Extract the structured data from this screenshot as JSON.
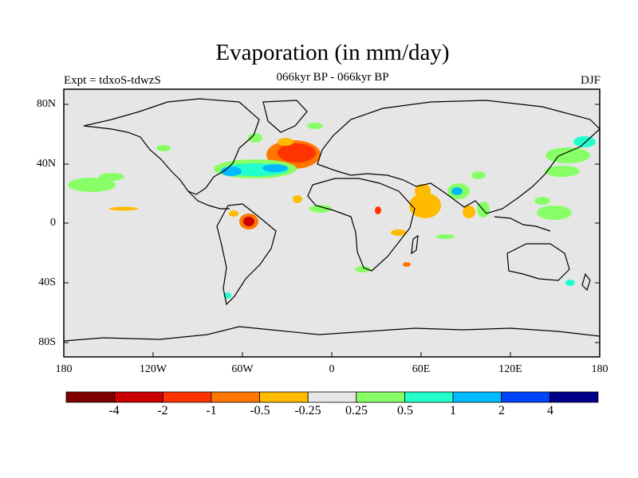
{
  "header": {
    "title": "Evaporation (in mm/day)",
    "subtitle": "066kyr BP - 066kyr BP",
    "experiment_label": "Expt = tdxoS-tdwzS",
    "season_label": "DJF"
  },
  "map": {
    "lat_ticks": [
      "80N",
      "40N",
      "0",
      "40S",
      "80S"
    ],
    "lon_ticks": [
      "180",
      "120W",
      "60W",
      "0",
      "60E",
      "120E",
      "180"
    ],
    "background_color": "#e6e6e6"
  },
  "colorbar": {
    "colors": [
      "#800000",
      "#cc0000",
      "#ff3300",
      "#ff7700",
      "#ffbb00",
      "#e6e6e6",
      "#88ff66",
      "#22ffcc",
      "#00bbff",
      "#0044ff",
      "#000088"
    ],
    "labels": [
      "-4",
      "-2",
      "-1",
      "-0.5",
      "-0.25",
      "0.25",
      "0.5",
      "1",
      "2",
      "4"
    ]
  }
}
